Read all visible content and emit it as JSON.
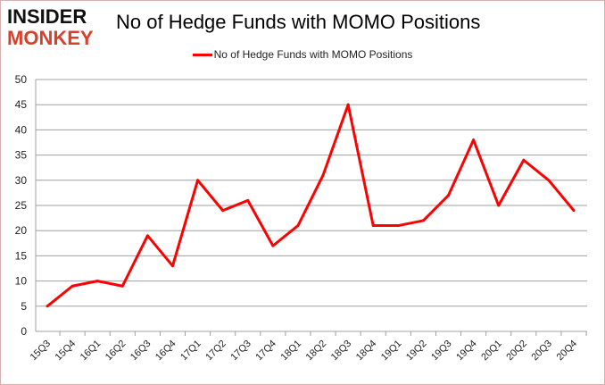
{
  "logo": {
    "line1": "INSIDER",
    "line2": "MONKEY"
  },
  "chart_data": {
    "type": "line",
    "title": "No of Hedge Funds with MOMO Positions",
    "xlabel": "",
    "ylabel": "",
    "categories": [
      "15Q3",
      "15Q4",
      "16Q1",
      "16Q2",
      "16Q3",
      "16Q4",
      "17Q1",
      "17Q2",
      "17Q3",
      "17Q4",
      "18Q1",
      "18Q2",
      "18Q3",
      "18Q4",
      "19Q1",
      "19Q2",
      "19Q3",
      "19Q4",
      "20Q1",
      "20Q2",
      "20Q3",
      "20Q4"
    ],
    "series": [
      {
        "name": "No of Hedge Funds with MOMO Positions",
        "color": "#ff0000",
        "values": [
          5,
          9,
          10,
          9,
          19,
          13,
          30,
          24,
          26,
          17,
          21,
          31,
          45,
          21,
          21,
          22,
          27,
          38,
          25,
          34,
          30,
          24
        ]
      }
    ],
    "ylim": [
      0,
      50
    ],
    "yticks": [
      "0",
      "5",
      "10",
      "15",
      "20",
      "25",
      "30",
      "35",
      "40",
      "45",
      "50"
    ],
    "grid": true,
    "legend": "top-center"
  }
}
